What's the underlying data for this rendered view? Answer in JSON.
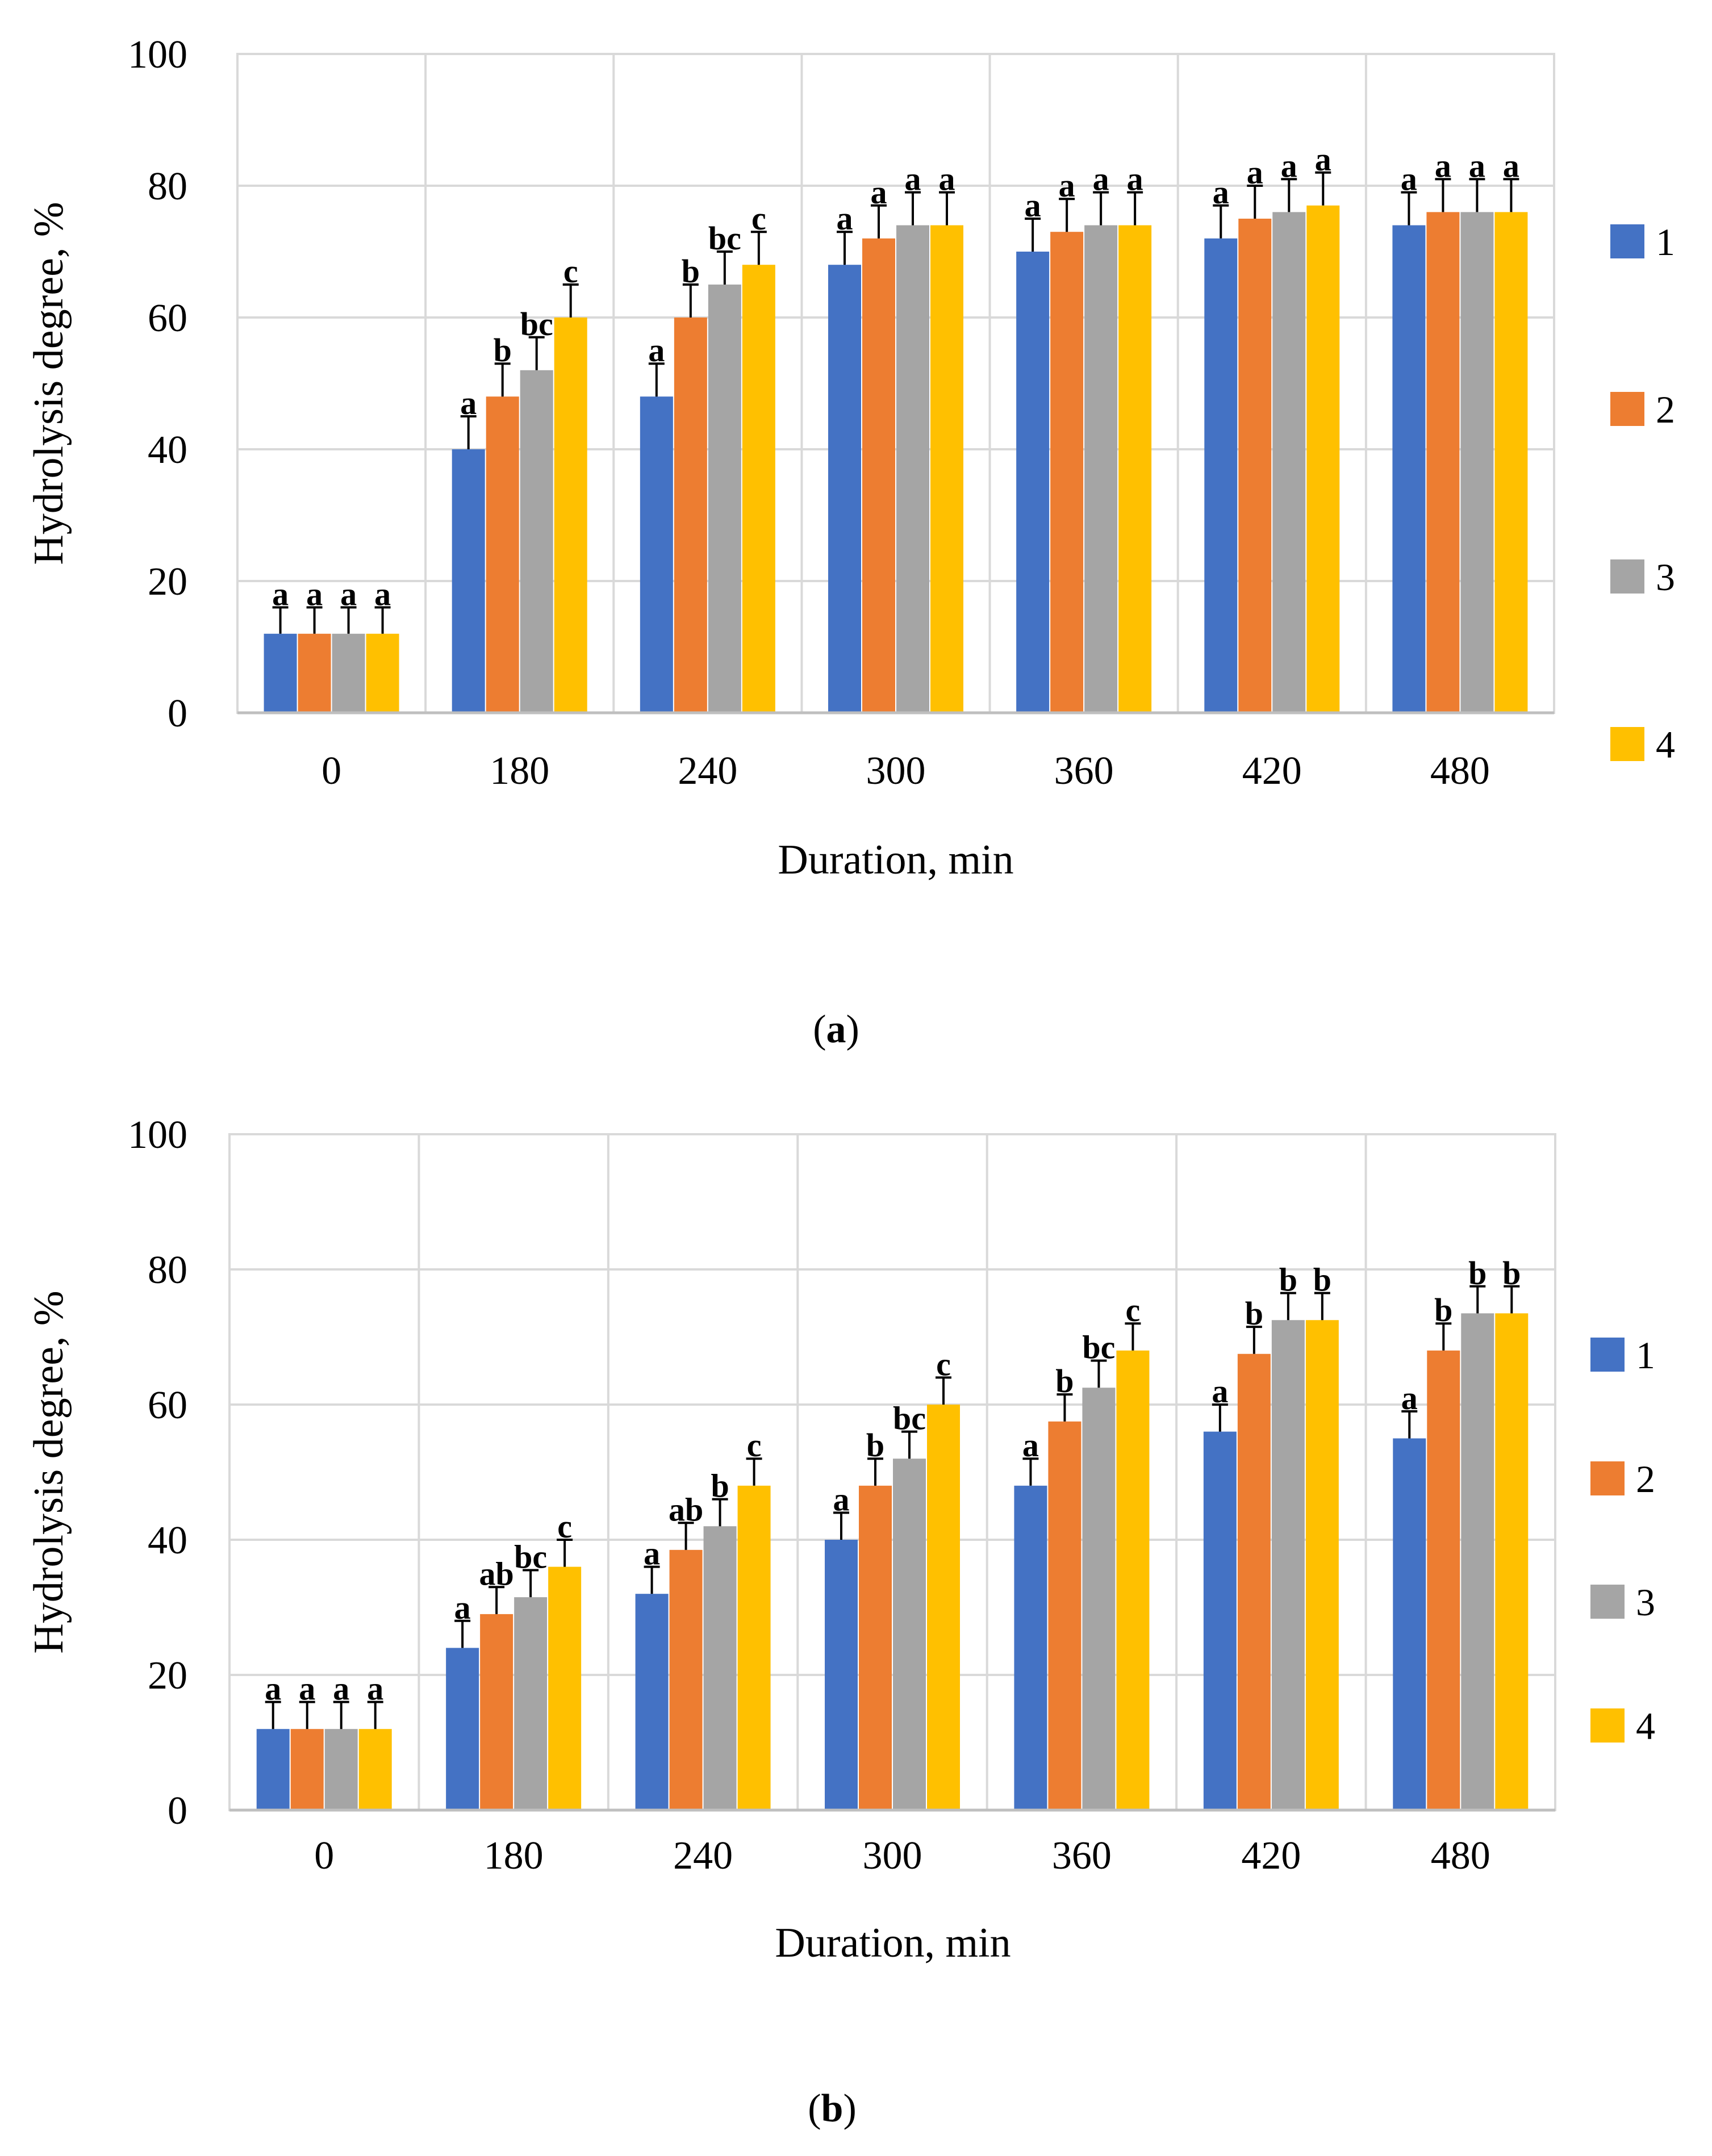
{
  "series_colors": [
    "#4472C4",
    "#ED7D31",
    "#A5A5A5",
    "#FFC000"
  ],
  "chart_data": [
    {
      "type": "bar",
      "caption_letter": "a",
      "ylabel": "Hydrolysis degree, %",
      "xlabel": "Duration, min",
      "ylim": [
        0,
        100
      ],
      "yticks": [
        0,
        20,
        40,
        60,
        80,
        100
      ],
      "grid": true,
      "legend_position": "right",
      "categories": [
        "0",
        "180",
        "240",
        "300",
        "360",
        "420",
        "480"
      ],
      "series": [
        {
          "name": "1",
          "values": [
            12,
            40,
            48,
            68,
            70,
            72,
            74
          ],
          "errors": [
            4,
            5,
            5,
            5,
            5,
            5,
            5
          ],
          "labels": [
            "a",
            "a",
            "a",
            "a",
            "a",
            "a",
            "a"
          ]
        },
        {
          "name": "2",
          "values": [
            12,
            48,
            60,
            72,
            73,
            75,
            76
          ],
          "errors": [
            4,
            5,
            5,
            5,
            5,
            5,
            5
          ],
          "labels": [
            "a",
            "b",
            "b",
            "a",
            "a",
            "a",
            "a"
          ]
        },
        {
          "name": "3",
          "values": [
            12,
            52,
            65,
            74,
            74,
            76,
            76
          ],
          "errors": [
            4,
            5,
            5,
            5,
            5,
            5,
            5
          ],
          "labels": [
            "a",
            "bc",
            "bc",
            "a",
            "a",
            "a",
            "a"
          ]
        },
        {
          "name": "4",
          "values": [
            12,
            60,
            68,
            74,
            74,
            77,
            76
          ],
          "errors": [
            4,
            5,
            5,
            5,
            5,
            5,
            5
          ],
          "labels": [
            "a",
            "c",
            "c",
            "a",
            "a",
            "a",
            "a"
          ]
        }
      ]
    },
    {
      "type": "bar",
      "caption_letter": "b",
      "ylabel": "Hydrolysis degree, %",
      "xlabel": "Duration, min",
      "ylim": [
        0,
        100
      ],
      "yticks": [
        0,
        20,
        40,
        60,
        80,
        100
      ],
      "grid": true,
      "legend_position": "right",
      "categories": [
        "0",
        "180",
        "240",
        "300",
        "360",
        "420",
        "480"
      ],
      "series": [
        {
          "name": "1",
          "values": [
            12,
            24,
            32,
            40,
            48,
            56,
            55
          ],
          "errors": [
            4,
            4,
            4,
            4,
            4,
            4,
            4
          ],
          "labels": [
            "a",
            "a",
            "a",
            "a",
            "a",
            "a",
            "a"
          ]
        },
        {
          "name": "2",
          "values": [
            12,
            29,
            38.5,
            48,
            57.5,
            67.5,
            68
          ],
          "errors": [
            4,
            4,
            4,
            4,
            4,
            4,
            4
          ],
          "labels": [
            "a",
            "ab",
            "ab",
            "b",
            "b",
            "b",
            "b"
          ]
        },
        {
          "name": "3",
          "values": [
            12,
            31.5,
            42,
            52,
            62.5,
            72.5,
            73.5
          ],
          "errors": [
            4,
            4,
            4,
            4,
            4,
            4,
            4
          ],
          "labels": [
            "a",
            "bc",
            "b",
            "bc",
            "bc",
            "b",
            "b"
          ]
        },
        {
          "name": "4",
          "values": [
            12,
            36,
            48,
            60,
            68,
            72.5,
            73.5
          ],
          "errors": [
            4,
            4,
            4,
            4,
            4,
            4,
            4
          ],
          "labels": [
            "a",
            "c",
            "c",
            "c",
            "c",
            "b",
            "b"
          ]
        }
      ]
    }
  ]
}
